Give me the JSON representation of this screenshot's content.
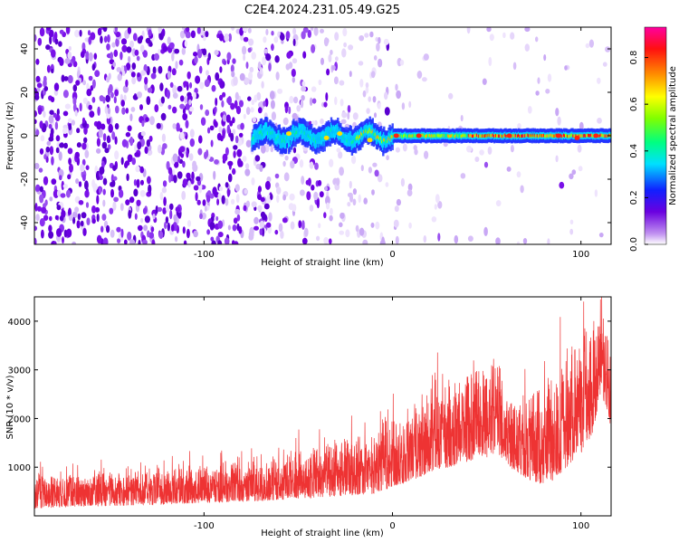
{
  "title": "C2E4.2024.231.05.49.G25",
  "chart_data": [
    {
      "type": "heatmap",
      "xlabel": "Height of straight line (km)",
      "ylabel": "Frequency (Hz)",
      "xlim": [
        -190,
        116
      ],
      "ylim": [
        -50,
        50
      ],
      "xticks": [
        -100,
        0,
        100
      ],
      "yticks": [
        -40,
        -20,
        0,
        20,
        40
      ],
      "colorbar": {
        "label": "Normalized spectral amplitude",
        "range": [
          0,
          0.93
        ],
        "ticks": [
          0.0,
          0.2,
          0.4,
          0.6,
          0.8
        ],
        "tick_labels": [
          "0.0",
          "0.2",
          "0.4",
          "0.6",
          "0.8"
        ],
        "colormap": "rainbow (white, purple, blue, cyan, green, yellow, orange, red, magenta)"
      },
      "description_values": {
        "trace_frequency_hz": 0,
        "trace_start_km": -75,
        "trace_end_km": 116,
        "max_amplitude_region_km": [
          0,
          116
        ]
      },
      "grid": false
    },
    {
      "type": "line",
      "xlabel": "Height of straight line (km)",
      "ylabel": "SNR (10 * v/v)",
      "xlim": [
        -190,
        116
      ],
      "ylim": [
        0,
        4500
      ],
      "xticks": [
        -100,
        0,
        100
      ],
      "yticks": [
        1000,
        2000,
        3000,
        4000
      ],
      "color": "#ee3333",
      "envelope": {
        "x": [
          -190,
          -170,
          -150,
          -130,
          -110,
          -90,
          -70,
          -50,
          -30,
          -10,
          0,
          10,
          20,
          30,
          40,
          50,
          55,
          60,
          65,
          70,
          75,
          80,
          85,
          90,
          95,
          100,
          105,
          108,
          110,
          113,
          116
        ],
        "low": [
          150,
          180,
          200,
          220,
          250,
          280,
          300,
          350,
          400,
          450,
          600,
          700,
          900,
          1000,
          1100,
          1200,
          1300,
          1100,
          900,
          800,
          700,
          650,
          700,
          900,
          1100,
          1300,
          1500,
          2000,
          2500,
          2300,
          1800
        ],
        "high": [
          900,
          950,
          1000,
          1050,
          1100,
          1150,
          1250,
          1400,
          1600,
          1800,
          2100,
          2400,
          2700,
          2900,
          3000,
          3300,
          3500,
          3100,
          2800,
          2600,
          2700,
          2900,
          3100,
          3300,
          3600,
          3900,
          4200,
          4500,
          4400,
          4000,
          3300
        ]
      },
      "grid": false
    }
  ]
}
